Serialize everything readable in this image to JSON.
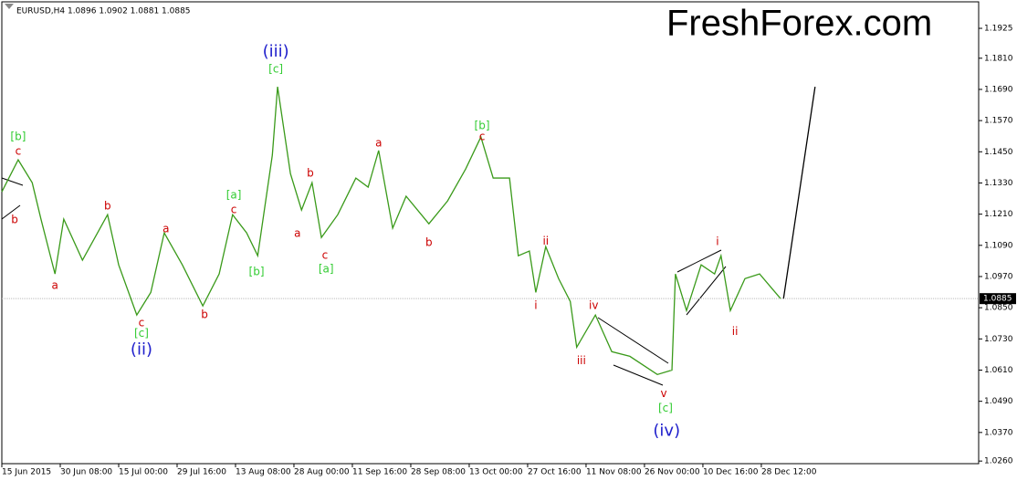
{
  "chart_data": {
    "type": "line",
    "title": "EURUSD,H4  1.0896 1.0902 1.0881 1.0885",
    "watermark": "FreshForex.com",
    "watermark_color": "#33cc33",
    "xlim": [
      0,
      16.72
    ],
    "xticks": [
      {
        "value": 0,
        "label": "15 Jun 2015"
      },
      {
        "value": 1,
        "label": "30 Jun 08:00"
      },
      {
        "value": 2,
        "label": "15 Jul 00:00"
      },
      {
        "value": 3,
        "label": "29 Jul 16:00"
      },
      {
        "value": 4,
        "label": "13 Aug 08:00"
      },
      {
        "value": 5,
        "label": "28 Aug 00:00"
      },
      {
        "value": 6,
        "label": "11 Sep 16:00"
      },
      {
        "value": 7,
        "label": "28 Sep 08:00"
      },
      {
        "value": 8,
        "label": "13 Oct 00:00"
      },
      {
        "value": 9,
        "label": "27 Oct 16:00"
      },
      {
        "value": 10,
        "label": "11 Nov 08:00"
      },
      {
        "value": 11,
        "label": "26 Nov 00:00"
      },
      {
        "value": 12,
        "label": "10 Dec 16:00"
      },
      {
        "value": 13,
        "label": "28 Dec 12:00"
      }
    ],
    "ylim": [
      1.025,
      1.2034
    ],
    "yticks": [
      {
        "value": 1.1925,
        "label": "1.1925"
      },
      {
        "value": 1.181,
        "label": "1.1810"
      },
      {
        "value": 1.169,
        "label": "1.1690"
      },
      {
        "value": 1.157,
        "label": "1.1570"
      },
      {
        "value": 1.145,
        "label": "1.1450"
      },
      {
        "value": 1.133,
        "label": "1.1330"
      },
      {
        "value": 1.121,
        "label": "1.1210"
      },
      {
        "value": 1.109,
        "label": "1.1090"
      },
      {
        "value": 1.097,
        "label": "1.0970"
      },
      {
        "value": 1.085,
        "label": "1.0850"
      },
      {
        "value": 1.073,
        "label": "1.0730"
      },
      {
        "value": 1.061,
        "label": "1.0610"
      },
      {
        "value": 1.049,
        "label": "1.0490"
      },
      {
        "value": 1.037,
        "label": "1.0370"
      },
      {
        "value": 1.026,
        "label": "1.0260"
      }
    ],
    "current_price": 1.0885,
    "series": [
      {
        "color": "#3a9a1a",
        "x": [
          0,
          0.28,
          0.52,
          0.67,
          0.91,
          1.06,
          1.38,
          1.81,
          2,
          2.31,
          2.55,
          2.78,
          3.09,
          3.44,
          3.72,
          3.95,
          4.19,
          4.38,
          4.63,
          4.72,
          4.94,
          5.13,
          5.31,
          5.47,
          5.75,
          6.06,
          6.27,
          6.45,
          6.69,
          6.92,
          7.31,
          7.63,
          7.94,
          8.2,
          8.41,
          8.69,
          8.84,
          9.03,
          9.14,
          9.31,
          9.53,
          9.73,
          9.84,
          10.16,
          10.44,
          10.75,
          11.22,
          11.47,
          11.53,
          11.72,
          11.97,
          12.2,
          12.31,
          12.47,
          12.72,
          12.97,
          13.17,
          13.33
        ],
        "values": [
          1.1296,
          1.1419,
          1.1331,
          1.1191,
          1.098,
          1.1191,
          1.1033,
          1.1208,
          1.1015,
          1.0822,
          1.0909,
          1.1138,
          1.1015,
          1.0857,
          1.098,
          1.1208,
          1.1138,
          1.105,
          1.1437,
          1.17,
          1.1366,
          1.1226,
          1.1331,
          1.112,
          1.1208,
          1.1349,
          1.1314,
          1.1455,
          1.1156,
          1.1279,
          1.1173,
          1.1261,
          1.1384,
          1.1507,
          1.1349,
          1.1349,
          1.105,
          1.1068,
          1.0909,
          1.1085,
          1.0962,
          1.0874,
          1.0698,
          1.0822,
          1.0681,
          1.0663,
          1.0593,
          1.061,
          1.098,
          1.0839,
          1.1015,
          1.098,
          1.105,
          1.0839,
          1.0962,
          1.098,
          1.0927,
          1.0885
        ]
      },
      {
        "color": "#000000",
        "x": [
          13.38,
          13.92
        ],
        "values": [
          1.0885,
          1.17
        ]
      }
    ],
    "annotations": [
      {
        "text": "[b]",
        "color": "#33cc33",
        "x": 0.28,
        "y": 1.1507
      },
      {
        "text": "c",
        "color": "#cc0000",
        "x": 0.28,
        "y": 1.1451
      },
      {
        "text": "b",
        "color": "#cc0000",
        "x": 0.22,
        "y": 1.1188
      },
      {
        "text": "a",
        "color": "#cc0000",
        "x": 0.91,
        "y": 1.0934
      },
      {
        "text": "b",
        "color": "#cc0000",
        "x": 1.81,
        "y": 1.124
      },
      {
        "text": "a",
        "color": "#cc0000",
        "x": 2.81,
        "y": 1.1152
      },
      {
        "text": "c",
        "color": "#cc0000",
        "x": 2.39,
        "y": 1.079
      },
      {
        "text": "[c]",
        "color": "#33cc33",
        "x": 2.39,
        "y": 1.0751
      },
      {
        "text": "(ii)",
        "color": "#2020cc",
        "x": 2.39,
        "y": 1.0688
      },
      {
        "text": "b",
        "color": "#cc0000",
        "x": 3.47,
        "y": 1.0822
      },
      {
        "text": "[a]",
        "color": "#33cc33",
        "x": 3.97,
        "y": 1.1282
      },
      {
        "text": "c",
        "color": "#cc0000",
        "x": 3.97,
        "y": 1.1226
      },
      {
        "text": "[b]",
        "color": "#33cc33",
        "x": 4.36,
        "y": 1.0987
      },
      {
        "text": "(iii)",
        "color": "#2020cc",
        "x": 4.69,
        "y": 1.1834
      },
      {
        "text": "[c]",
        "color": "#33cc33",
        "x": 4.69,
        "y": 1.1767
      },
      {
        "text": "b",
        "color": "#cc0000",
        "x": 5.28,
        "y": 1.1366
      },
      {
        "text": "a",
        "color": "#cc0000",
        "x": 5.06,
        "y": 1.1135
      },
      {
        "text": "c",
        "color": "#cc0000",
        "x": 5.53,
        "y": 1.105
      },
      {
        "text": "[a]",
        "color": "#33cc33",
        "x": 5.55,
        "y": 1.0998
      },
      {
        "text": "a",
        "color": "#cc0000",
        "x": 6.45,
        "y": 1.1483
      },
      {
        "text": "b",
        "color": "#cc0000",
        "x": 7.31,
        "y": 1.1099
      },
      {
        "text": "[b]",
        "color": "#33cc33",
        "x": 8.22,
        "y": 1.155
      },
      {
        "text": "c",
        "color": "#cc0000",
        "x": 8.22,
        "y": 1.1507
      },
      {
        "text": "ii",
        "color": "#cc0000",
        "x": 9.31,
        "y": 1.1106
      },
      {
        "text": "i",
        "color": "#cc0000",
        "x": 9.14,
        "y": 1.0857
      },
      {
        "text": "iv",
        "color": "#cc0000",
        "x": 10.13,
        "y": 1.0857
      },
      {
        "text": "iii",
        "color": "#cc0000",
        "x": 9.92,
        "y": 1.0645
      },
      {
        "text": "v",
        "color": "#cc0000",
        "x": 11.33,
        "y": 1.0519
      },
      {
        "text": "[c]",
        "color": "#33cc33",
        "x": 11.36,
        "y": 1.0463
      },
      {
        "text": "(iv)",
        "color": "#2020cc",
        "x": 11.38,
        "y": 1.0375
      },
      {
        "text": "i",
        "color": "#cc0000",
        "x": 12.25,
        "y": 1.1103
      },
      {
        "text": "ii",
        "color": "#cc0000",
        "x": 12.55,
        "y": 1.0758
      }
    ]
  }
}
